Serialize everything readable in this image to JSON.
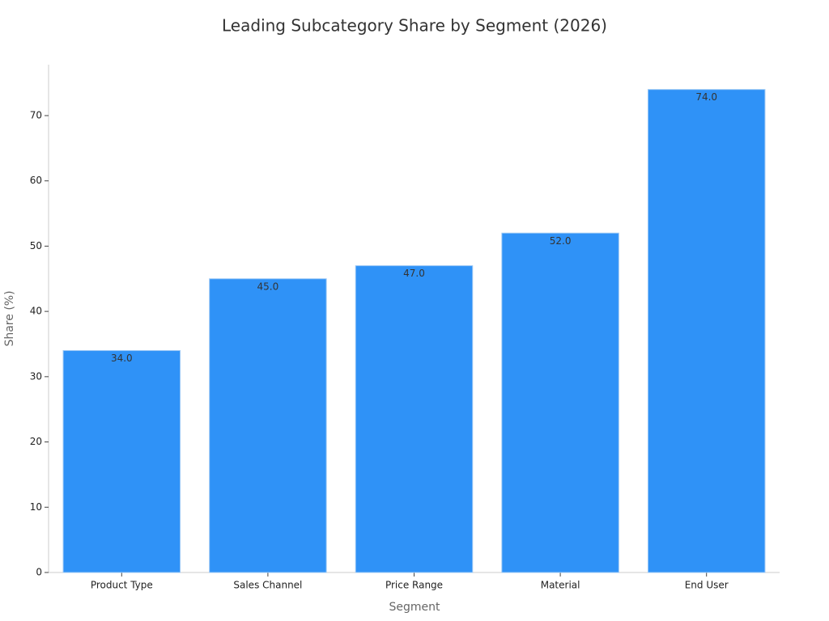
{
  "chart_data": {
    "type": "bar",
    "title": "Leading Subcategory Share by Segment (2026)",
    "x_label": "Segment",
    "y_label": "Share (%)",
    "categories": [
      "Product Type",
      "Sales Channel",
      "Price Range",
      "Material",
      "End User"
    ],
    "values": [
      34,
      45,
      47,
      52,
      74
    ],
    "value_labels": [
      "34.0",
      "45.0",
      "47.0",
      "52.0",
      "74.0"
    ],
    "color": "#2f92f7",
    "ylim": [
      0,
      77.8
    ],
    "yticks": [
      0,
      10,
      20,
      30,
      40,
      50,
      60,
      70
    ],
    "grid": false
  }
}
